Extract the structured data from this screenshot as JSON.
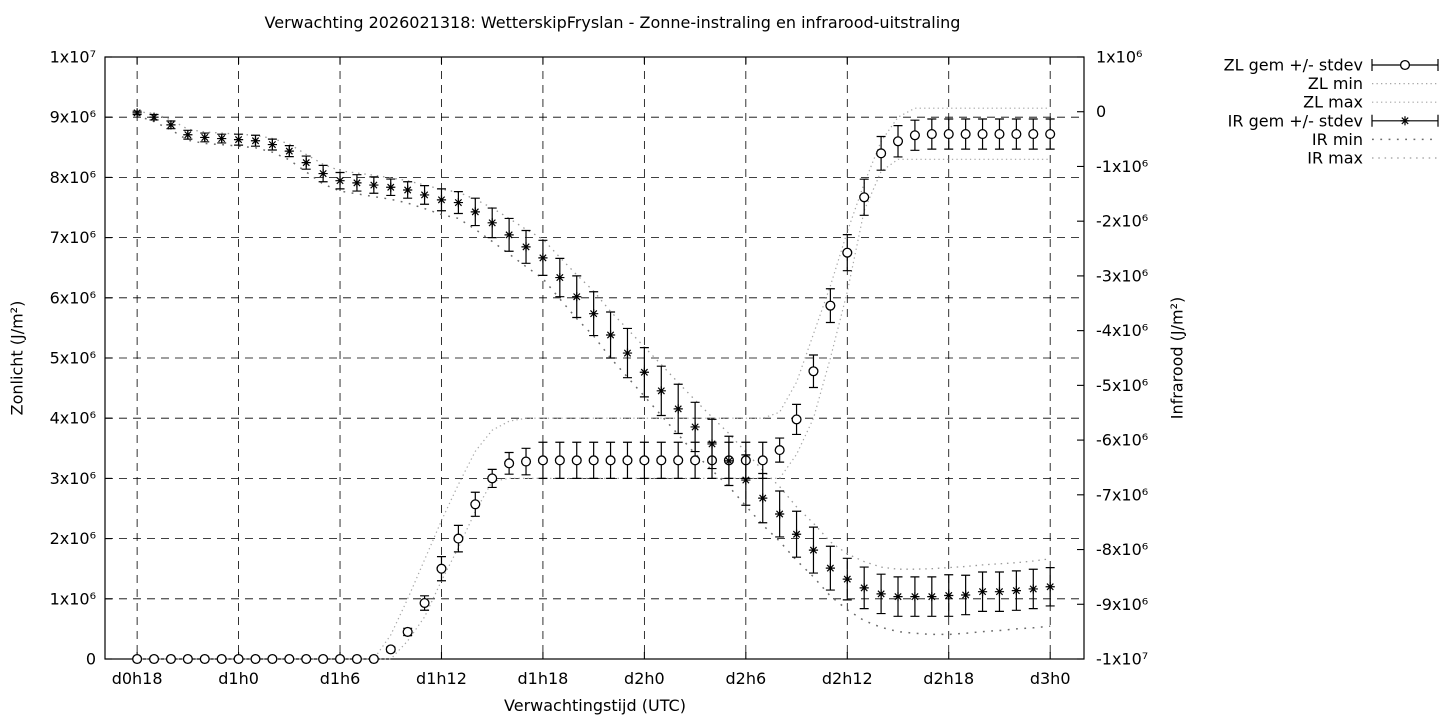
{
  "chart_data": {
    "type": "line",
    "title": "Verwachting 2026021318: WetterskipFryslan - Zonne-instraling en infrarood-uitstraling",
    "xlabel": "Verwachtingstijd (UTC)",
    "ylabel_left": "Zonlicht (J/m²)",
    "ylabel_right": "Infrarood (J/m²)",
    "value_unit": "1e6 J/m2",
    "grid": true,
    "legend_position": "top-right-outside",
    "x_range_hours": [
      16.1,
      74
    ],
    "yl_range": [
      0,
      10
    ],
    "yr_range": [
      -10,
      1
    ],
    "x_ticks": [
      {
        "hour": 18,
        "label": "d0h18"
      },
      {
        "hour": 24,
        "label": "d1h0"
      },
      {
        "hour": 30,
        "label": "d1h6"
      },
      {
        "hour": 36,
        "label": "d1h12"
      },
      {
        "hour": 42,
        "label": "d1h18"
      },
      {
        "hour": 48,
        "label": "d2h0"
      },
      {
        "hour": 54,
        "label": "d2h6"
      },
      {
        "hour": 60,
        "label": "d2h12"
      },
      {
        "hour": 66,
        "label": "d2h18"
      },
      {
        "hour": 72,
        "label": "d3h0"
      }
    ],
    "y_left_ticks": [
      {
        "v": 0,
        "label": "0"
      },
      {
        "v": 1,
        "label": "1x10⁶"
      },
      {
        "v": 2,
        "label": "2x10⁶"
      },
      {
        "v": 3,
        "label": "3x10⁶"
      },
      {
        "v": 4,
        "label": "4x10⁶"
      },
      {
        "v": 5,
        "label": "5x10⁶"
      },
      {
        "v": 6,
        "label": "6x10⁶"
      },
      {
        "v": 7,
        "label": "7x10⁶"
      },
      {
        "v": 8,
        "label": "8x10⁶"
      },
      {
        "v": 9,
        "label": "9x10⁶"
      },
      {
        "v": 10,
        "label": "1x10⁷"
      }
    ],
    "y_right_ticks": [
      {
        "v": 1,
        "label": "1x10⁶"
      },
      {
        "v": 0,
        "label": "0"
      },
      {
        "v": -1,
        "label": "-1x10⁶"
      },
      {
        "v": -2,
        "label": "-2x10⁶"
      },
      {
        "v": -3,
        "label": "-3x10⁶"
      },
      {
        "v": -4,
        "label": "-4x10⁶"
      },
      {
        "v": -5,
        "label": "-5x10⁶"
      },
      {
        "v": -6,
        "label": "-6x10⁶"
      },
      {
        "v": -7,
        "label": "-7x10⁶"
      },
      {
        "v": -8,
        "label": "-8x10⁶"
      },
      {
        "v": -9,
        "label": "-9x10⁶"
      },
      {
        "v": -10,
        "label": "-1x10⁷"
      }
    ],
    "hours": [
      18,
      19,
      20,
      21,
      22,
      23,
      24,
      25,
      26,
      27,
      28,
      29,
      30,
      31,
      32,
      33,
      34,
      35,
      36,
      37,
      38,
      39,
      40,
      41,
      42,
      43,
      44,
      45,
      46,
      47,
      48,
      49,
      50,
      51,
      52,
      53,
      54,
      55,
      56,
      57,
      58,
      59,
      60,
      61,
      62,
      63,
      64,
      65,
      66,
      67,
      68,
      69,
      70,
      71,
      72
    ],
    "series": [
      {
        "name": "ZL gem +/- stdev",
        "axis": "left",
        "type": "errorbar",
        "marker": "circle",
        "values": [
          0,
          0,
          0,
          0,
          0,
          0,
          0,
          0,
          0,
          0,
          0,
          0,
          0,
          0,
          0,
          0.16,
          0.45,
          0.93,
          1.5,
          2.0,
          2.57,
          3.0,
          3.25,
          3.28,
          3.3,
          3.3,
          3.3,
          3.3,
          3.3,
          3.3,
          3.3,
          3.3,
          3.3,
          3.3,
          3.3,
          3.3,
          3.3,
          3.3,
          3.47,
          3.98,
          4.78,
          5.87,
          6.75,
          7.67,
          8.4,
          8.6,
          8.7,
          8.72,
          8.72,
          8.72,
          8.72,
          8.72,
          8.72,
          8.72,
          8.72
        ],
        "stdev": [
          0,
          0,
          0,
          0,
          0,
          0,
          0,
          0,
          0,
          0,
          0,
          0,
          0,
          0,
          0,
          0.04,
          0.06,
          0.12,
          0.2,
          0.22,
          0.2,
          0.15,
          0.18,
          0.22,
          0.3,
          0.3,
          0.3,
          0.3,
          0.3,
          0.3,
          0.3,
          0.3,
          0.3,
          0.3,
          0.3,
          0.3,
          0.3,
          0.3,
          0.2,
          0.25,
          0.27,
          0.28,
          0.3,
          0.3,
          0.28,
          0.26,
          0.25,
          0.25,
          0.25,
          0.25,
          0.25,
          0.25,
          0.25,
          0.25,
          0.25
        ]
      },
      {
        "name": "ZL min",
        "axis": "left",
        "type": "dots",
        "style": "dots-fine",
        "values": [
          0,
          0,
          0,
          0,
          0,
          0,
          0,
          0,
          0,
          0,
          0,
          0,
          0,
          0,
          0,
          0,
          0.3,
          0.7,
          1.3,
          1.85,
          2.45,
          2.95,
          3.0,
          3.0,
          3.0,
          3.0,
          3.0,
          3.0,
          3.0,
          3.0,
          3.0,
          3.0,
          3.0,
          3.0,
          3.0,
          3.0,
          3.0,
          3.0,
          3.0,
          3.4,
          4.0,
          5.0,
          6.1,
          7.45,
          8.1,
          8.3,
          8.3,
          8.3,
          8.3,
          8.3,
          8.3,
          8.3,
          8.3,
          8.3,
          8.3
        ]
      },
      {
        "name": "ZL max",
        "axis": "left",
        "type": "dots",
        "style": "dots-fine",
        "values": [
          0,
          0,
          0,
          0,
          0,
          0,
          0,
          0,
          0,
          0,
          0,
          0,
          0,
          0,
          0,
          0.4,
          1.0,
          1.65,
          2.3,
          2.9,
          3.45,
          3.8,
          3.95,
          4.0,
          4.0,
          4.0,
          4.0,
          4.0,
          4.0,
          4.0,
          4.0,
          4.0,
          4.0,
          4.0,
          4.0,
          4.0,
          4.0,
          4.0,
          4.1,
          4.6,
          5.4,
          6.2,
          7.1,
          7.9,
          8.6,
          9.0,
          9.15,
          9.15,
          9.15,
          9.15,
          9.15,
          9.15,
          9.15,
          9.15,
          9.15
        ]
      },
      {
        "name": "IR gem +/- stdev",
        "axis": "right",
        "type": "errorbar",
        "marker": "star",
        "values": [
          -0.02,
          -0.1,
          -0.24,
          -0.42,
          -0.47,
          -0.49,
          -0.51,
          -0.53,
          -0.6,
          -0.72,
          -0.93,
          -1.13,
          -1.26,
          -1.3,
          -1.34,
          -1.38,
          -1.43,
          -1.52,
          -1.61,
          -1.66,
          -1.83,
          -2.03,
          -2.25,
          -2.47,
          -2.67,
          -3.03,
          -3.38,
          -3.69,
          -4.08,
          -4.41,
          -4.76,
          -5.1,
          -5.43,
          -5.76,
          -6.07,
          -6.38,
          -6.73,
          -7.06,
          -7.35,
          -7.72,
          -8.01,
          -8.34,
          -8.54,
          -8.7,
          -8.81,
          -8.86,
          -8.86,
          -8.86,
          -8.84,
          -8.83,
          -8.77,
          -8.77,
          -8.75,
          -8.72,
          -8.68
        ],
        "stdev": [
          0.03,
          0.05,
          0.07,
          0.08,
          0.08,
          0.08,
          0.1,
          0.1,
          0.1,
          0.1,
          0.12,
          0.15,
          0.15,
          0.15,
          0.15,
          0.15,
          0.15,
          0.17,
          0.2,
          0.2,
          0.25,
          0.27,
          0.3,
          0.3,
          0.32,
          0.35,
          0.38,
          0.4,
          0.42,
          0.45,
          0.45,
          0.45,
          0.45,
          0.45,
          0.45,
          0.45,
          0.46,
          0.45,
          0.42,
          0.42,
          0.42,
          0.4,
          0.38,
          0.38,
          0.36,
          0.36,
          0.36,
          0.36,
          0.38,
          0.36,
          0.36,
          0.36,
          0.36,
          0.36,
          0.35
        ]
      },
      {
        "name": "IR min",
        "axis": "right",
        "type": "dots",
        "style": "dots-sparse",
        "values": [
          -0.07,
          -0.18,
          -0.33,
          -0.52,
          -0.58,
          -0.6,
          -0.63,
          -0.66,
          -0.74,
          -0.88,
          -1.1,
          -1.32,
          -1.45,
          -1.5,
          -1.55,
          -1.6,
          -1.67,
          -1.77,
          -1.88,
          -1.95,
          -2.15,
          -2.37,
          -2.6,
          -2.83,
          -3.05,
          -3.42,
          -3.78,
          -4.1,
          -4.5,
          -4.85,
          -5.2,
          -5.55,
          -5.9,
          -6.25,
          -6.55,
          -6.85,
          -7.2,
          -7.55,
          -7.85,
          -8.2,
          -8.5,
          -8.85,
          -9.1,
          -9.3,
          -9.42,
          -9.5,
          -9.53,
          -9.55,
          -9.55,
          -9.53,
          -9.5,
          -9.48,
          -9.45,
          -9.43,
          -9.4
        ]
      },
      {
        "name": "IR max",
        "axis": "right",
        "type": "dots",
        "style": "dots-med",
        "values": [
          0.0,
          -0.03,
          -0.15,
          -0.32,
          -0.37,
          -0.39,
          -0.41,
          -0.43,
          -0.49,
          -0.59,
          -0.78,
          -0.96,
          -1.08,
          -1.12,
          -1.16,
          -1.21,
          -1.26,
          -1.34,
          -1.42,
          -1.47,
          -1.6,
          -1.76,
          -1.95,
          -2.15,
          -2.33,
          -2.66,
          -2.98,
          -3.28,
          -3.65,
          -3.97,
          -4.3,
          -4.62,
          -4.95,
          -5.27,
          -5.58,
          -5.88,
          -6.22,
          -6.55,
          -6.85,
          -7.22,
          -7.52,
          -7.86,
          -8.08,
          -8.22,
          -8.32,
          -8.36,
          -8.36,
          -8.35,
          -8.33,
          -8.31,
          -8.28,
          -8.26,
          -8.24,
          -8.21,
          -8.17
        ]
      }
    ]
  }
}
